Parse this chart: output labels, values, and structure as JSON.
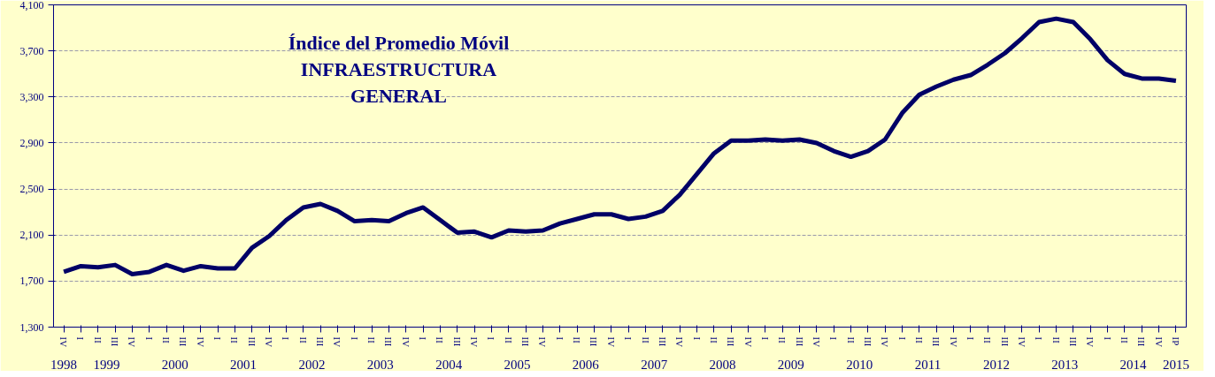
{
  "chart_data": {
    "type": "line",
    "title": "Índice del Promedio Móvil\nINFRAESTRUCTURA\nGENERAL",
    "categories": [
      "IV",
      "I",
      "II",
      "III",
      "IV",
      "I",
      "II",
      "III",
      "IV",
      "I",
      "II",
      "III",
      "IV",
      "I",
      "II",
      "III",
      "IV",
      "I",
      "II",
      "III",
      "IV",
      "I",
      "II",
      "III",
      "IV",
      "I",
      "II",
      "III",
      "IV",
      "I",
      "II",
      "III",
      "IV",
      "I",
      "II",
      "III",
      "IV",
      "I",
      "II",
      "III",
      "IV",
      "I",
      "II",
      "III",
      "IV",
      "I",
      "II",
      "III",
      "IV",
      "I",
      "II",
      "III",
      "IV",
      "I",
      "II",
      "III",
      "IV",
      "I",
      "II",
      "III",
      "IV",
      "I",
      "II",
      "III",
      "IV",
      "IP"
    ],
    "annotations": [
      "1998",
      "1999",
      "2000",
      "2001",
      "2002",
      "2003",
      "2004",
      "2005",
      "2006",
      "2007",
      "2008",
      "2009",
      "2010",
      "2011",
      "2012",
      "2013",
      "2014",
      "2015"
    ],
    "series": [
      {
        "color": "#000066",
        "values": [
          1780,
          1830,
          1820,
          1840,
          1760,
          1780,
          1840,
          1790,
          1830,
          1810,
          1810,
          1990,
          2090,
          2230,
          2340,
          2370,
          2310,
          2220,
          2230,
          2220,
          2290,
          2340,
          2230,
          2120,
          2130,
          2080,
          2140,
          2130,
          2140,
          2200,
          2240,
          2280,
          2280,
          2240,
          2260,
          2310,
          2450,
          2630,
          2810,
          2920,
          2920,
          2930,
          2920,
          2930,
          2900,
          2830,
          2780,
          2830,
          2930,
          3160,
          3320,
          3390,
          3450,
          3490,
          3580,
          3680,
          3810,
          3950,
          3980,
          3950,
          3800,
          3620,
          3500,
          3460,
          3460,
          3440
        ]
      }
    ],
    "ylim": [
      1300,
      4100
    ],
    "yticks": [
      {
        "value": 1300,
        "label": "1,300"
      },
      {
        "value": 1700,
        "label": "1,700"
      },
      {
        "value": 2100,
        "label": "2,100"
      },
      {
        "value": 2500,
        "label": "2,500"
      },
      {
        "value": 2900,
        "label": "2,900"
      },
      {
        "value": 3300,
        "label": "3,300"
      },
      {
        "value": 3700,
        "label": "3,700"
      },
      {
        "value": 4100,
        "label": "4,100"
      }
    ],
    "grid": "y",
    "marker": "none",
    "line_style": "solid"
  }
}
